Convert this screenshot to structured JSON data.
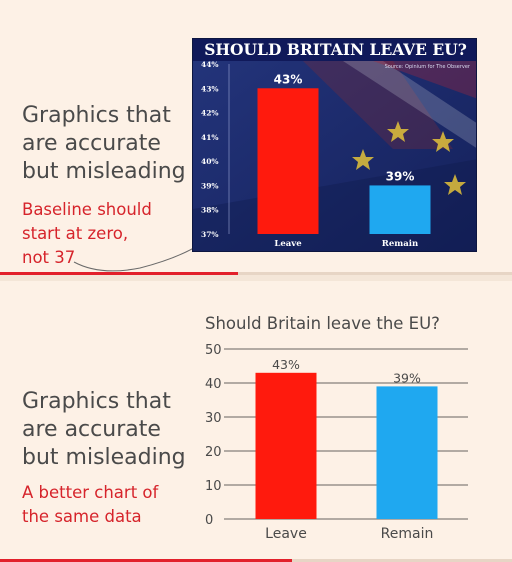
{
  "slides": [
    {
      "headline": "Graphics that\nare accurate\nbut misleading",
      "note": "Baseline should\nstart at zero,\nnot 37",
      "progress": 0.465
    },
    {
      "headline": "Graphics that\nare accurate\nbut misleading",
      "note": "A better chart of\nthe same data",
      "progress": 0.57
    }
  ],
  "colors": {
    "accent": "#d6242b",
    "leave": "#ff1a0d",
    "remain": "#1fa8f0",
    "tabloid_bg": "#1a2a6a"
  },
  "chart_data": [
    {
      "type": "bar",
      "title": "SHOULD BRITAIN LEAVE EU?",
      "source": "Source: Opinium for The Observer",
      "categories": [
        "Leave",
        "Remain"
      ],
      "values": [
        43,
        39
      ],
      "value_labels": [
        "43%",
        "39%"
      ],
      "yticks": [
        "37%",
        "38%",
        "39%",
        "40%",
        "41%",
        "42%",
        "43%",
        "44%"
      ],
      "ylim": [
        37,
        44
      ],
      "bar_colors": [
        "#ff1a0d",
        "#1fa8f0"
      ],
      "grid": false
    },
    {
      "type": "bar",
      "title": "Should Britain leave the EU?",
      "categories": [
        "Leave",
        "Remain"
      ],
      "values": [
        43,
        39
      ],
      "value_labels": [
        "43%",
        "39%"
      ],
      "yticks": [
        "0",
        "10",
        "20",
        "30",
        "40",
        "50"
      ],
      "ylim": [
        0,
        50
      ],
      "bar_colors": [
        "#ff1a0d",
        "#1fa8f0"
      ],
      "grid": true
    }
  ]
}
